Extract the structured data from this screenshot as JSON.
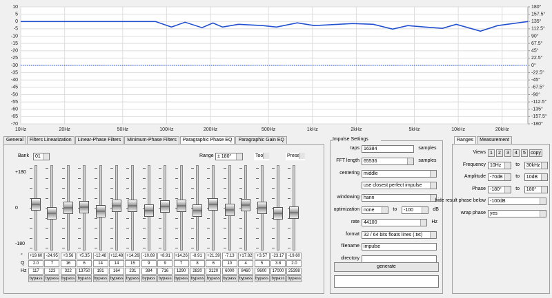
{
  "chart_data": {
    "type": "line",
    "log_x": true,
    "grid": true,
    "xlim": [
      10,
      30000
    ],
    "ylim": [
      -70,
      10
    ],
    "y2lim": [
      -180,
      180
    ],
    "xticks": [
      {
        "value": 10,
        "label": "10Hz"
      },
      {
        "value": 20,
        "label": "20Hz"
      },
      {
        "value": 50,
        "label": "50Hz"
      },
      {
        "value": 100,
        "label": "100Hz"
      },
      {
        "value": 200,
        "label": "200Hz"
      },
      {
        "value": 500,
        "label": "500Hz"
      },
      {
        "value": 1000,
        "label": "1kHz"
      },
      {
        "value": 2000,
        "label": "2kHz"
      },
      {
        "value": 5000,
        "label": "5kHz"
      },
      {
        "value": 10000,
        "label": "10kHz"
      },
      {
        "value": 20000,
        "label": "20kHz"
      }
    ],
    "yticks": [
      10,
      5,
      0,
      -5,
      -10,
      -15,
      -20,
      -25,
      -30,
      -35,
      -40,
      -45,
      -50,
      -55,
      -60,
      -65,
      -70
    ],
    "y2ticks": [
      {
        "value": 180,
        "label": "180°"
      },
      {
        "value": 157.5,
        "label": "157.5°"
      },
      {
        "value": 135,
        "label": "135°"
      },
      {
        "value": 112.5,
        "label": "112.5°"
      },
      {
        "value": 90,
        "label": "90°"
      },
      {
        "value": 67.5,
        "label": "67.5°"
      },
      {
        "value": 45,
        "label": "45°"
      },
      {
        "value": 22.5,
        "label": "22.5°"
      },
      {
        "value": 0,
        "label": "0°"
      },
      {
        "value": -22.5,
        "label": "-22.5°"
      },
      {
        "value": -45,
        "label": "-45°"
      },
      {
        "value": -67.5,
        "label": "-67.5°"
      },
      {
        "value": -90,
        "label": "-90°"
      },
      {
        "value": -112.5,
        "label": "-112.5°"
      },
      {
        "value": -135,
        "label": "-135°"
      },
      {
        "value": -157.5,
        "label": "-157.5°"
      },
      {
        "value": -180,
        "label": "-180°"
      }
    ],
    "series": [
      {
        "color": "#1f4fd0",
        "x": [
          10,
          84,
          108,
          134,
          175,
          208,
          242,
          311,
          456,
          567,
          787,
          1033,
          1884,
          2614,
          3548,
          4508,
          5926,
          7785,
          9683,
          14191,
          18621,
          30000
        ],
        "values": [
          0,
          0,
          -3.8,
          -0.5,
          -4.2,
          -1,
          -3.8,
          -1.9,
          -2.8,
          -3.8,
          -0.9,
          -2.8,
          -1.4,
          -1.9,
          -5.2,
          -2.8,
          -3.8,
          -4.7,
          -1.9,
          -6.6,
          -2.8,
          0
        ]
      },
      {
        "color": "#1f4fd0",
        "axis": "y2",
        "dashed": true,
        "x": [
          10,
          30000
        ],
        "values": [
          0,
          0
        ]
      }
    ]
  },
  "tabs": {
    "items": [
      "General",
      "Filters Linearization",
      "Linear-Phase Filters",
      "Minimum-Phase Filters",
      "Paragraphic Phase EQ",
      "Paragraphic Gain EQ"
    ],
    "active": 4
  },
  "eq": {
    "bank_label": "Bank",
    "bank": "01",
    "range_label": "Range",
    "range": "± 180°",
    "tools": "Tools",
    "presets": "Presets",
    "scale": [
      "+180",
      "0",
      "-180"
    ],
    "row_labels": [
      "°",
      "Q",
      "Hz"
    ],
    "bands": [
      {
        "phase": "+19.60",
        "q": "2.0",
        "hz": "117",
        "button": "bypass"
      },
      {
        "phase": "-24.95",
        "q": "7",
        "hz": "123",
        "button": "bypass"
      },
      {
        "phase": "+3.56",
        "q": "16",
        "hz": "322",
        "button": "bypass"
      },
      {
        "phase": "+5.35",
        "q": "6",
        "hz": "13750",
        "button": "bypass"
      },
      {
        "phase": "-12.48",
        "q": "14",
        "hz": "191",
        "button": "bypass"
      },
      {
        "phase": "+12.48",
        "q": "14",
        "hz": "164",
        "button": "bypass"
      },
      {
        "phase": "+14.26",
        "q": "15",
        "hz": "231",
        "button": "bypass"
      },
      {
        "phase": "-10.69",
        "q": "9",
        "hz": "384",
        "button": "bypass"
      },
      {
        "phase": "+8.91",
        "q": "9",
        "hz": "716",
        "button": "bypass"
      },
      {
        "phase": "+14.26",
        "q": "7",
        "hz": "1290",
        "button": "bypass"
      },
      {
        "phase": "-8.91",
        "q": "8",
        "hz": "2820",
        "button": "bypass"
      },
      {
        "phase": "+21.39",
        "q": "6",
        "hz": "3120",
        "button": "bypass"
      },
      {
        "phase": "-7.13",
        "q": "10",
        "hz": "6000",
        "button": "bypass"
      },
      {
        "phase": "+17.82",
        "q": "4",
        "hz": "8460",
        "button": "bypass"
      },
      {
        "phase": "+3.57",
        "q": "5",
        "hz": "9600",
        "button": "bypass"
      },
      {
        "phase": "-23.17",
        "q": "3.8",
        "hz": "17000",
        "button": "bypass"
      },
      {
        "phase": "-19.60",
        "q": "2.0",
        "hz": "25398",
        "button": "bypass"
      }
    ]
  },
  "impulse": {
    "title": "Impulse Settings",
    "rows": [
      {
        "label": "taps",
        "controls": [
          {
            "kind": "input",
            "text": "16384"
          },
          {
            "kind": "text",
            "text": "samples"
          }
        ]
      },
      {
        "label": "FFT length",
        "controls": [
          {
            "kind": "select",
            "text": "65536"
          },
          {
            "kind": "text",
            "text": "samples"
          }
        ]
      },
      {
        "label": "centering",
        "controls": [
          {
            "kind": "select",
            "text": "middle"
          }
        ]
      },
      {
        "controls": [
          {
            "kind": "select",
            "text": "use closest perfect impulse"
          }
        ]
      },
      {
        "label": "windowing",
        "controls": [
          {
            "kind": "select",
            "text": "hann"
          }
        ]
      },
      {
        "label": "optimization",
        "controls": [
          {
            "kind": "select",
            "text": "none"
          },
          {
            "kind": "text",
            "text": "to"
          },
          {
            "kind": "select",
            "text": "-100"
          },
          {
            "kind": "text",
            "text": "dB"
          }
        ]
      },
      {
        "label": "rate",
        "controls": [
          {
            "kind": "select",
            "text": "44100"
          },
          {
            "kind": "text",
            "text": "Hz"
          }
        ]
      },
      {
        "label": "format",
        "controls": [
          {
            "kind": "select",
            "text": "32 / 64 bits floats lines (.txt)"
          }
        ]
      },
      {
        "label": "filename",
        "controls": [
          {
            "kind": "input",
            "text": "impulse"
          }
        ]
      },
      {
        "label": "directory",
        "controls": [
          {
            "kind": "input"
          }
        ]
      }
    ],
    "button": "generate"
  },
  "ranges": {
    "tabs": [
      "Ranges",
      "Measurement"
    ],
    "rows": [
      {
        "label": "Views",
        "controls": [
          {
            "kind": "button",
            "text": "1"
          },
          {
            "kind": "button",
            "text": "2"
          },
          {
            "kind": "button",
            "text": "3"
          },
          {
            "kind": "button",
            "text": "4"
          },
          {
            "kind": "button",
            "text": "5"
          },
          {
            "kind": "button",
            "text": "copy"
          }
        ]
      },
      {
        "label": "Frequency",
        "controls": [
          {
            "kind": "select",
            "text": "10Hz"
          },
          {
            "kind": "text",
            "text": "to"
          },
          {
            "kind": "select",
            "text": "30kHz"
          }
        ]
      },
      {
        "label": "Amplitude",
        "controls": [
          {
            "kind": "select",
            "text": "-70dB"
          },
          {
            "kind": "text",
            "text": "to"
          },
          {
            "kind": "select",
            "text": "10dB"
          }
        ]
      },
      {
        "label": "Phase",
        "controls": [
          {
            "kind": "select",
            "text": "-180°"
          },
          {
            "kind": "text",
            "text": "to"
          },
          {
            "kind": "select",
            "text": "180°"
          }
        ]
      },
      {
        "label": "hide result phase below",
        "controls": [
          {
            "kind": "select",
            "text": "-100dB"
          }
        ]
      },
      {
        "label": "wrap phase",
        "controls": [
          {
            "kind": "select",
            "text": "yes"
          }
        ]
      }
    ]
  }
}
